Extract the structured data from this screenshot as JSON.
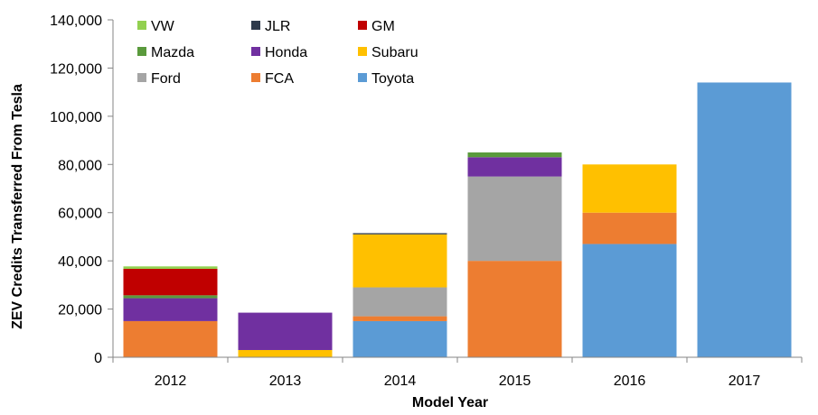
{
  "chart_data": {
    "type": "bar",
    "stacked": true,
    "title": "",
    "xlabel": "Model Year",
    "ylabel": "ZEV Credits Transferred From Tesla",
    "ylim": [
      0,
      140000
    ],
    "yticks": [
      0,
      20000,
      40000,
      60000,
      80000,
      100000,
      120000,
      140000
    ],
    "ytick_labels": [
      "0",
      "20,000",
      "40,000",
      "60,000",
      "80,000",
      "100,000",
      "120,000",
      "140,000"
    ],
    "categories": [
      "2012",
      "2013",
      "2014",
      "2015",
      "2016",
      "2017"
    ],
    "grid": false,
    "legend_position": "top-left",
    "series": [
      {
        "name": "Toyota",
        "color": "#5b9bd5",
        "values": [
          0,
          0,
          15000,
          0,
          47000,
          114000
        ]
      },
      {
        "name": "FCA",
        "color": "#ed7d31",
        "values": [
          15000,
          0,
          2000,
          40000,
          13000,
          0
        ]
      },
      {
        "name": "Ford",
        "color": "#a5a5a5",
        "values": [
          0,
          0,
          12000,
          35000,
          0,
          0
        ]
      },
      {
        "name": "Subaru",
        "color": "#ffc000",
        "values": [
          0,
          3000,
          22000,
          0,
          20000,
          0
        ]
      },
      {
        "name": "Honda",
        "color": "#7030a0",
        "values": [
          9500,
          15500,
          0,
          8000,
          0,
          0
        ]
      },
      {
        "name": "Mazda",
        "color": "#5a9a3c",
        "values": [
          1200,
          0,
          0,
          2000,
          0,
          0
        ]
      },
      {
        "name": "GM",
        "color": "#c00000",
        "values": [
          11000,
          0,
          0,
          0,
          0,
          0
        ]
      },
      {
        "name": "JLR",
        "color": "#2f3b4c",
        "values": [
          0,
          0,
          500,
          0,
          0,
          0
        ]
      },
      {
        "name": "VW",
        "color": "#92d050",
        "values": [
          1000,
          0,
          0,
          0,
          0,
          0
        ]
      }
    ],
    "legend_order": [
      "VW",
      "JLR",
      "GM",
      "Mazda",
      "Honda",
      "Subaru",
      "Ford",
      "FCA",
      "Toyota"
    ]
  }
}
